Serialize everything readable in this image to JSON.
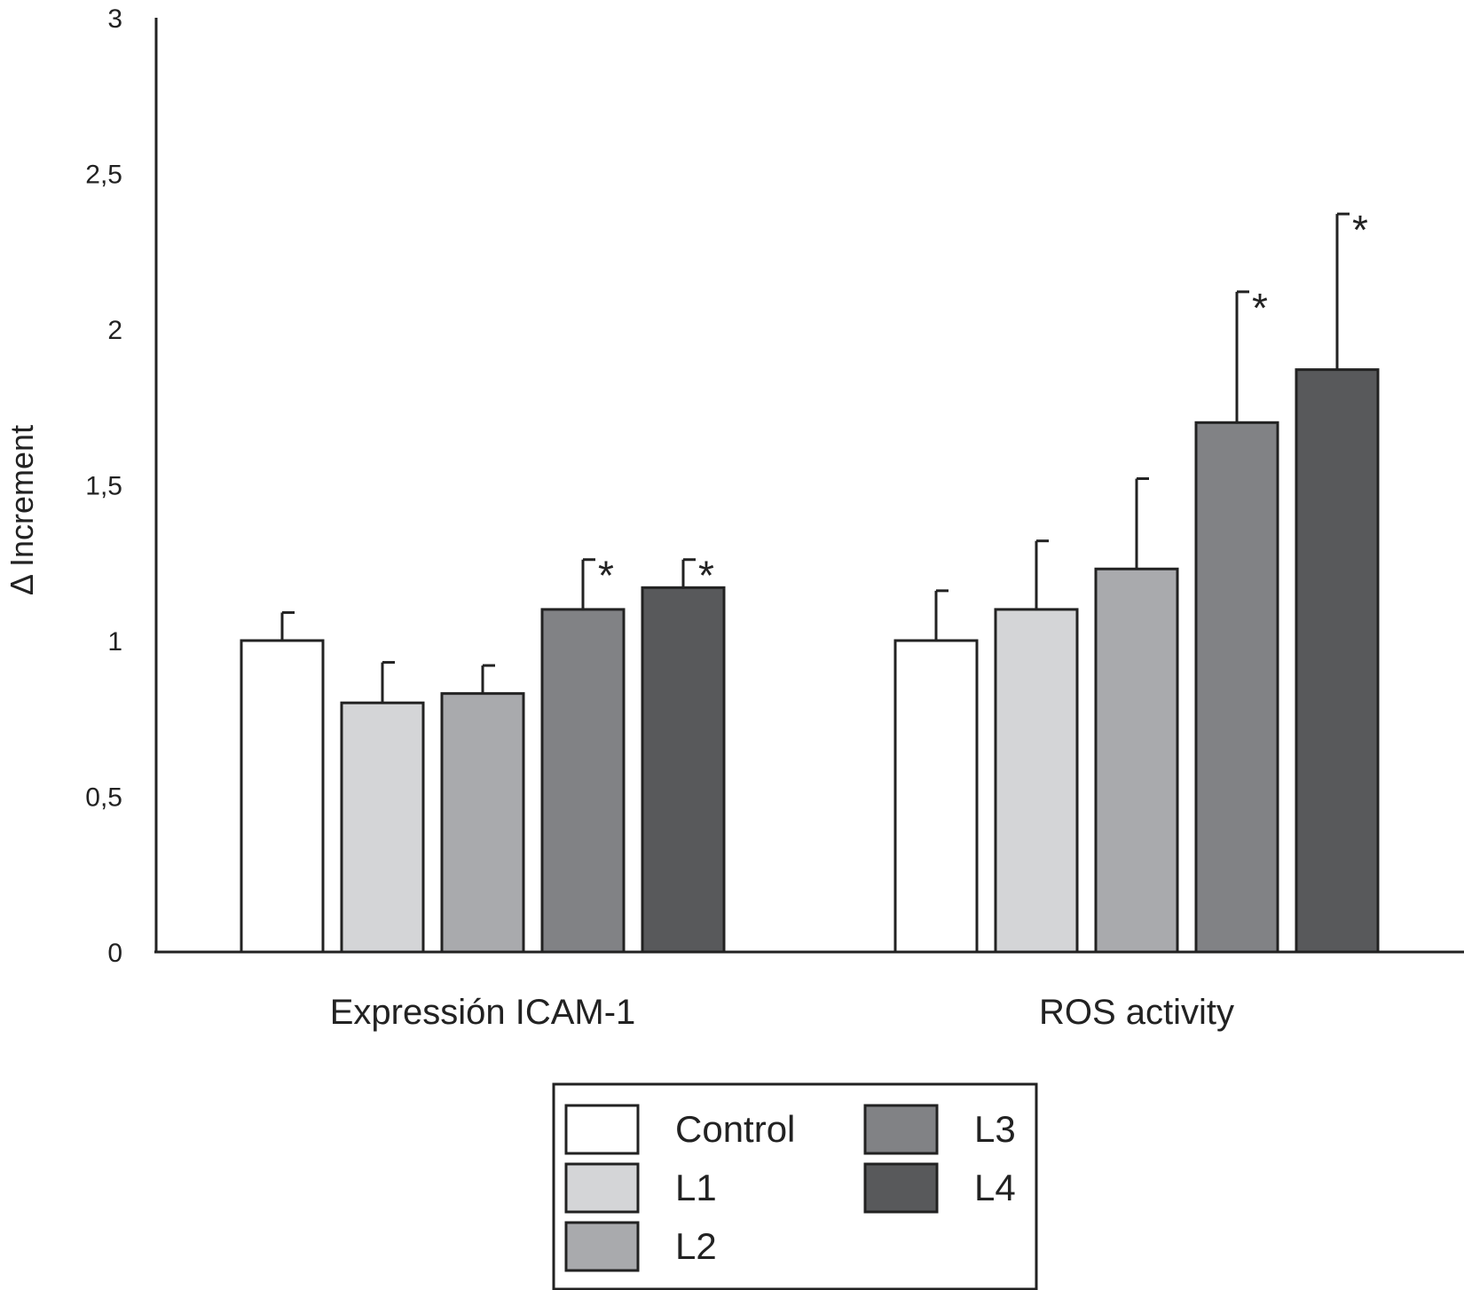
{
  "chart_data": {
    "type": "bar",
    "ylabel": "Δ Increment",
    "ylim": [
      0,
      3
    ],
    "yticks": [
      "0",
      "0,5",
      "1",
      "1,5",
      "2",
      "2,5",
      "3"
    ],
    "ytick_values": [
      0,
      0.5,
      1,
      1.5,
      2,
      2.5,
      3
    ],
    "categories": [
      "Expressión ICAM-1",
      "ROS activity"
    ],
    "series": [
      {
        "name": "Control",
        "color": "#ffffff",
        "values": [
          1.0,
          1.0
        ],
        "error": [
          0.09,
          0.16
        ],
        "significant": [
          false,
          false
        ]
      },
      {
        "name": "L1",
        "color": "#d4d5d7",
        "values": [
          0.8,
          1.1
        ],
        "error": [
          0.13,
          0.22
        ],
        "significant": [
          false,
          false
        ]
      },
      {
        "name": "L2",
        "color": "#a9aaad",
        "values": [
          0.83,
          1.23
        ],
        "error": [
          0.09,
          0.29
        ],
        "significant": [
          false,
          false
        ]
      },
      {
        "name": "L3",
        "color": "#818285",
        "values": [
          1.1,
          1.7
        ],
        "error": [
          0.16,
          0.42
        ],
        "significant": [
          true,
          true
        ]
      },
      {
        "name": "L4",
        "color": "#58595b",
        "values": [
          1.17,
          1.87
        ],
        "error": [
          0.09,
          0.5
        ],
        "significant": [
          true,
          true
        ]
      }
    ],
    "significance_marker": "*",
    "legend": {
      "position": "bottom-center",
      "columns": 2
    },
    "grid": false
  }
}
